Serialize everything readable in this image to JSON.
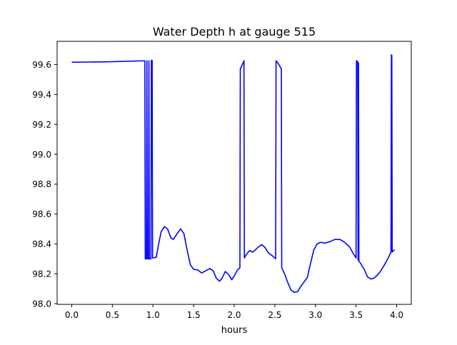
{
  "chart_data": {
    "type": "line",
    "title": "Water Depth h at gauge 515",
    "xlabel": "hours",
    "ylabel": "",
    "xlim": [
      -0.18,
      4.18
    ],
    "ylim": [
      97.995,
      99.755
    ],
    "xticks": [
      0.0,
      0.5,
      1.0,
      1.5,
      2.0,
      2.5,
      3.0,
      3.5,
      4.0
    ],
    "xtick_labels": [
      "0.0",
      "0.5",
      "1.0",
      "1.5",
      "2.0",
      "2.5",
      "3.0",
      "3.5",
      "4.0"
    ],
    "yticks": [
      98.0,
      98.2,
      98.4,
      98.6,
      98.8,
      99.0,
      99.2,
      99.4,
      99.6
    ],
    "ytick_labels": [
      "98.0",
      "98.2",
      "98.4",
      "98.6",
      "98.8",
      "99.0",
      "99.2",
      "99.4",
      "99.6"
    ],
    "grid": false,
    "series": [
      {
        "color": "#0000ff",
        "points": [
          [
            0.0,
            99.615
          ],
          [
            0.45,
            99.618
          ],
          [
            0.9,
            99.625
          ],
          [
            0.905,
            98.3
          ],
          [
            0.92,
            98.3
          ],
          [
            0.925,
            99.625
          ],
          [
            0.93,
            98.3
          ],
          [
            0.945,
            98.3
          ],
          [
            0.95,
            99.625
          ],
          [
            0.955,
            98.3
          ],
          [
            0.975,
            98.3
          ],
          [
            0.98,
            99.628
          ],
          [
            0.99,
            99.628
          ],
          [
            0.995,
            98.305
          ],
          [
            1.04,
            98.31
          ],
          [
            1.07,
            98.4
          ],
          [
            1.1,
            98.48
          ],
          [
            1.14,
            98.515
          ],
          [
            1.18,
            98.5
          ],
          [
            1.22,
            98.44
          ],
          [
            1.25,
            98.43
          ],
          [
            1.3,
            98.47
          ],
          [
            1.34,
            98.5
          ],
          [
            1.38,
            98.47
          ],
          [
            1.42,
            98.36
          ],
          [
            1.46,
            98.26
          ],
          [
            1.5,
            98.23
          ],
          [
            1.55,
            98.225
          ],
          [
            1.6,
            98.205
          ],
          [
            1.65,
            98.22
          ],
          [
            1.7,
            98.235
          ],
          [
            1.74,
            98.22
          ],
          [
            1.78,
            98.17
          ],
          [
            1.82,
            98.15
          ],
          [
            1.85,
            98.17
          ],
          [
            1.89,
            98.215
          ],
          [
            1.93,
            98.195
          ],
          [
            1.97,
            98.16
          ],
          [
            2.0,
            98.185
          ],
          [
            2.04,
            98.225
          ],
          [
            2.07,
            98.24
          ],
          [
            2.075,
            99.57
          ],
          [
            2.1,
            99.6
          ],
          [
            2.12,
            99.625
          ],
          [
            2.125,
            98.305
          ],
          [
            2.15,
            98.33
          ],
          [
            2.19,
            98.355
          ],
          [
            2.23,
            98.345
          ],
          [
            2.27,
            98.365
          ],
          [
            2.3,
            98.38
          ],
          [
            2.34,
            98.395
          ],
          [
            2.38,
            98.375
          ],
          [
            2.42,
            98.34
          ],
          [
            2.47,
            98.32
          ],
          [
            2.51,
            98.3
          ],
          [
            2.515,
            99.625
          ],
          [
            2.55,
            99.6
          ],
          [
            2.58,
            99.57
          ],
          [
            2.585,
            98.24
          ],
          [
            2.62,
            98.2
          ],
          [
            2.66,
            98.14
          ],
          [
            2.7,
            98.09
          ],
          [
            2.74,
            98.075
          ],
          [
            2.78,
            98.08
          ],
          [
            2.82,
            98.115
          ],
          [
            2.86,
            98.145
          ],
          [
            2.9,
            98.175
          ],
          [
            2.94,
            98.27
          ],
          [
            2.98,
            98.36
          ],
          [
            3.02,
            98.4
          ],
          [
            3.06,
            98.41
          ],
          [
            3.12,
            98.405
          ],
          [
            3.18,
            98.415
          ],
          [
            3.24,
            98.43
          ],
          [
            3.3,
            98.43
          ],
          [
            3.36,
            98.41
          ],
          [
            3.42,
            98.38
          ],
          [
            3.46,
            98.34
          ],
          [
            3.5,
            98.305
          ],
          [
            3.505,
            99.625
          ],
          [
            3.52,
            99.62
          ],
          [
            3.525,
            98.29
          ],
          [
            3.53,
            99.61
          ],
          [
            3.535,
            98.285
          ],
          [
            3.56,
            98.265
          ],
          [
            3.6,
            98.23
          ],
          [
            3.64,
            98.18
          ],
          [
            3.68,
            98.165
          ],
          [
            3.72,
            98.17
          ],
          [
            3.76,
            98.19
          ],
          [
            3.8,
            98.215
          ],
          [
            3.85,
            98.26
          ],
          [
            3.9,
            98.31
          ],
          [
            3.93,
            98.345
          ],
          [
            3.935,
            99.665
          ],
          [
            3.94,
            99.66
          ],
          [
            3.945,
            98.345
          ],
          [
            3.96,
            98.355
          ],
          [
            3.975,
            98.36
          ]
        ]
      }
    ]
  }
}
